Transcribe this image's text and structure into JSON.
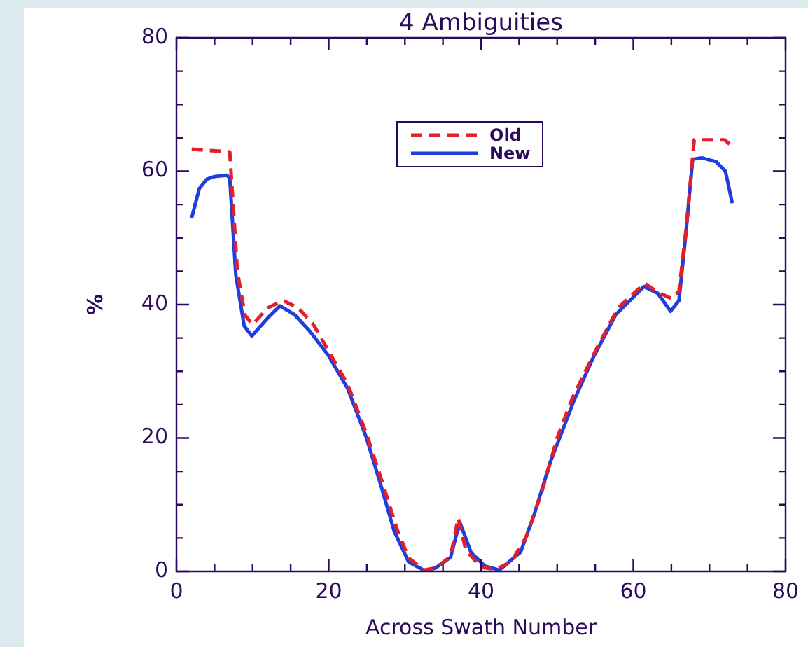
{
  "chart_data": {
    "type": "line",
    "title": "4 Ambiguities",
    "xlabel": "Across Swath Number",
    "ylabel": "%",
    "xlim": [
      0,
      80
    ],
    "ylim": [
      0,
      80
    ],
    "xticks": [
      0,
      {
        "value": 5,
        "label": null
      },
      {
        "value": 10,
        "label": null
      },
      {
        "value": 15,
        "label": null
      },
      20,
      {
        "value": 25,
        "label": null
      },
      {
        "value": 30,
        "label": null
      },
      {
        "value": 35,
        "label": null
      },
      40,
      {
        "value": 45,
        "label": null
      },
      {
        "value": 50,
        "label": null
      },
      {
        "value": 55,
        "label": null
      },
      60,
      {
        "value": 65,
        "label": null
      },
      {
        "value": 70,
        "label": null
      },
      {
        "value": 75,
        "label": null
      },
      80
    ],
    "yticks": [
      0,
      {
        "value": 5,
        "label": null
      },
      {
        "value": 10,
        "label": null
      },
      {
        "value": 15,
        "label": null
      },
      20,
      {
        "value": 25,
        "label": null
      },
      {
        "value": 30,
        "label": null
      },
      {
        "value": 35,
        "label": null
      },
      40,
      {
        "value": 45,
        "label": null
      },
      {
        "value": 50,
        "label": null
      },
      {
        "value": 55,
        "label": null
      },
      60,
      {
        "value": 65,
        "label": null
      },
      {
        "value": 70,
        "label": null
      },
      {
        "value": 75,
        "label": null
      },
      80
    ],
    "grid": false,
    "legend": "top",
    "marker": "none",
    "series": [
      {
        "name": "Old",
        "color": "#e0202a",
        "line_style": "dashed",
        "x": [
          2,
          7,
          8,
          9,
          10,
          12,
          14,
          16,
          18,
          20,
          22.5,
          25,
          27,
          29,
          30.5,
          32.5,
          34,
          36,
          37,
          38,
          40,
          42,
          44,
          46,
          48,
          50,
          52,
          55,
          58,
          61.5,
          63,
          65,
          66,
          67,
          68,
          70,
          72,
          73
        ],
        "values": [
          63.3,
          62.9,
          45,
          38.4,
          37,
          39.5,
          40.6,
          39.5,
          37,
          33,
          28,
          20.5,
          13.5,
          6.2,
          2,
          0.2,
          0.5,
          2.2,
          8,
          3.2,
          0.6,
          0.3,
          1.5,
          5.3,
          12,
          20,
          26,
          33,
          39.5,
          43.2,
          42,
          40.9,
          42,
          52,
          64.7,
          64.7,
          64.7,
          63.7
        ]
      },
      {
        "name": "New",
        "color": "#1f3ee0",
        "line_style": "solid",
        "x": [
          2,
          3,
          4,
          5,
          6.6,
          7,
          7.8,
          8.9,
          9.9,
          12,
          13.6,
          15.5,
          17.6,
          20,
          22.5,
          24.9,
          26.8,
          28.6,
          30.5,
          32.6,
          34,
          36,
          37.2,
          38.7,
          40.5,
          42.4,
          45.2,
          47,
          49.1,
          52.2,
          54.7,
          57.7,
          61.4,
          63.2,
          64.9,
          66,
          66.9,
          67.8,
          69,
          70.9,
          72.1,
          73
        ],
        "values": [
          53,
          57.4,
          58.8,
          59.2,
          59.4,
          59,
          44.4,
          36.8,
          35.3,
          38,
          39.8,
          38.5,
          35.9,
          32.3,
          27.4,
          20.2,
          13.1,
          6,
          1.4,
          0.1,
          0.5,
          2.1,
          7.4,
          2.8,
          0.8,
          0.2,
          2.9,
          8.6,
          16.4,
          25.6,
          32,
          38.5,
          42.7,
          41.7,
          39,
          40.6,
          50.6,
          61.8,
          62,
          61.4,
          60,
          55.2
        ]
      }
    ]
  }
}
